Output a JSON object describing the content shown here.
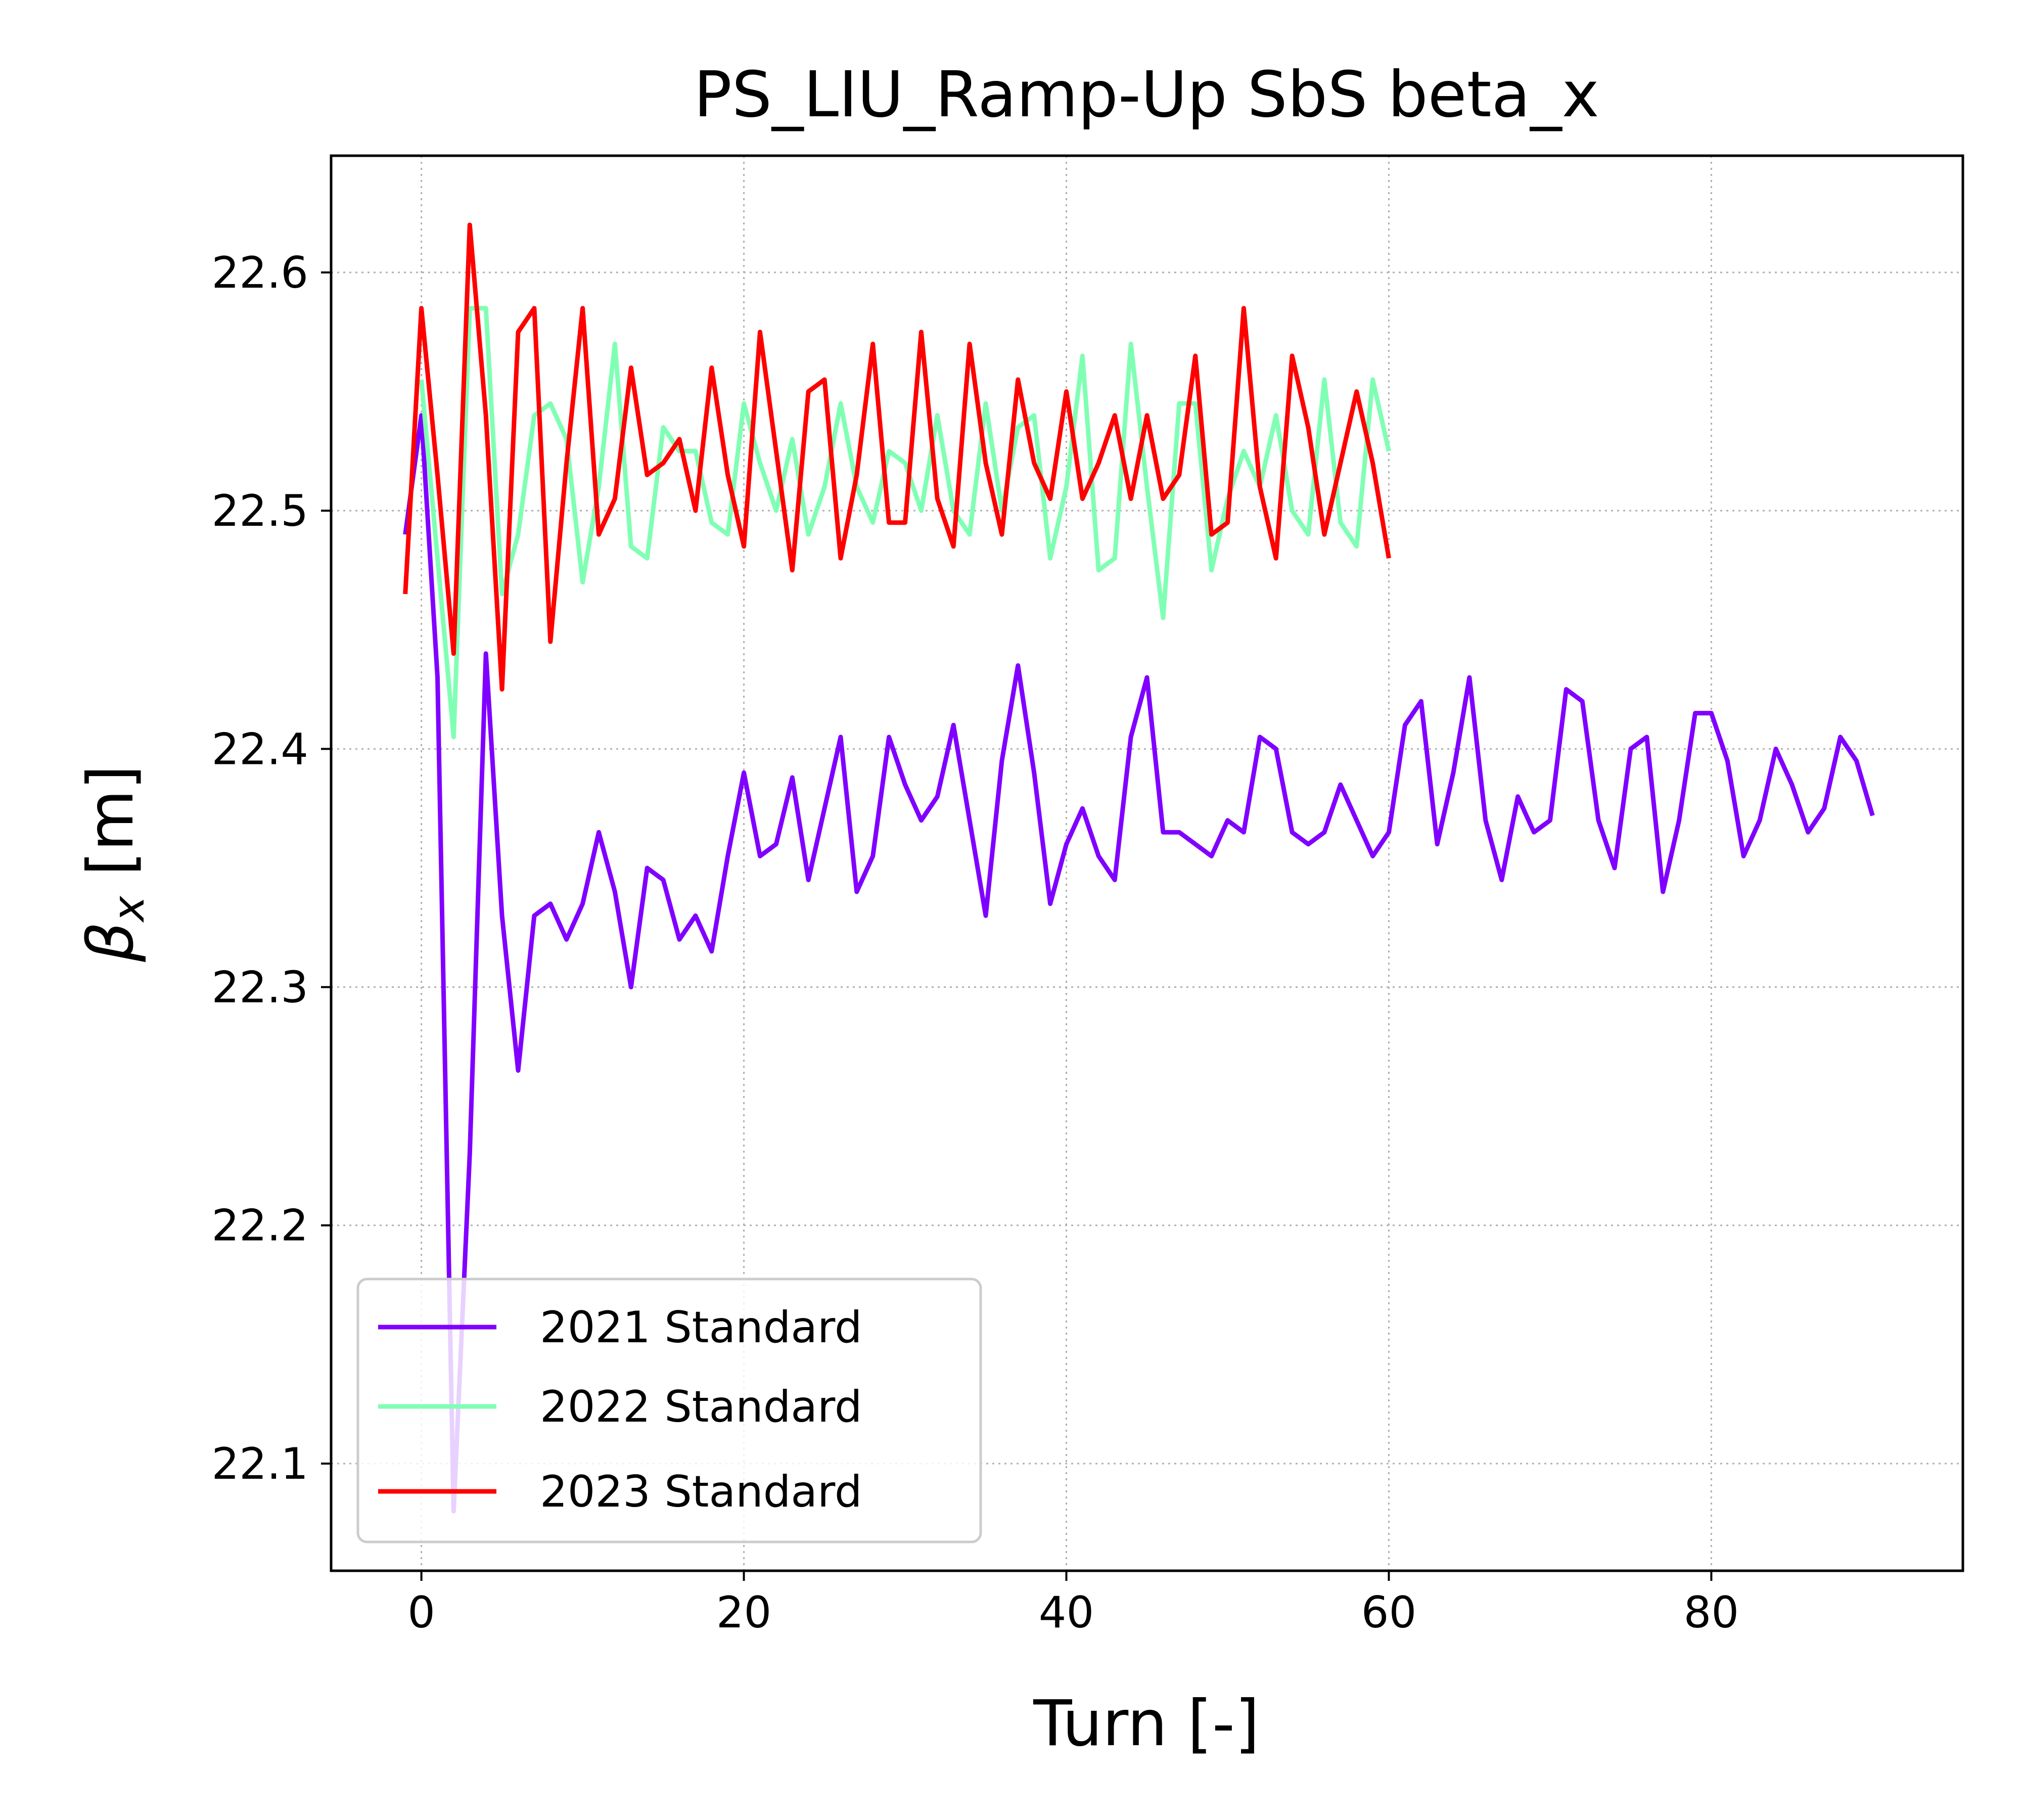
{
  "chart_data": {
    "type": "line",
    "title": "PS_LIU_Ramp-Up SbS beta_x",
    "xlabel": "Turn [-]",
    "ylabel": "β_x [m]",
    "ylabel_symbol": "β",
    "ylabel_subscript": "x",
    "ylabel_unit": " [m]",
    "xlim": [
      -5.6,
      95.6
    ],
    "ylim": [
      22.055,
      22.649
    ],
    "x_ticks": [
      0,
      20,
      40,
      60,
      80
    ],
    "y_ticks": [
      22.1,
      22.2,
      22.3,
      22.4,
      22.5,
      22.6
    ],
    "x_tick_labels": [
      "0",
      "20",
      "40",
      "60",
      "80"
    ],
    "y_tick_labels": [
      "22.1",
      "22.2",
      "22.3",
      "22.4",
      "22.5",
      "22.6"
    ],
    "grid": true,
    "legend_position": "lower-left",
    "series": [
      {
        "name": "2021 Standard",
        "color": "#8000ff",
        "x": [
          -1,
          0,
          1,
          2,
          3,
          4,
          5,
          6,
          7,
          8,
          9,
          10,
          11,
          12,
          13,
          14,
          15,
          16,
          17,
          18,
          19,
          20,
          21,
          22,
          23,
          24,
          25,
          26,
          27,
          28,
          29,
          30,
          31,
          32,
          33,
          34,
          35,
          36,
          37,
          38,
          39,
          40,
          41,
          42,
          43,
          44,
          45,
          46,
          47,
          48,
          49,
          50,
          51,
          52,
          53,
          54,
          55,
          56,
          57,
          58,
          59,
          60,
          61,
          62,
          63,
          64,
          65,
          66,
          67,
          68,
          69,
          70,
          71,
          72,
          73,
          74,
          75,
          76,
          77,
          78,
          79,
          80,
          81,
          82,
          83,
          84,
          85,
          86,
          87,
          88,
          89,
          90
        ],
        "y": [
          22.49,
          22.54,
          22.43,
          22.08,
          22.23,
          22.44,
          22.33,
          22.265,
          22.33,
          22.335,
          22.32,
          22.335,
          22.365,
          22.34,
          22.3,
          22.35,
          22.345,
          22.32,
          22.33,
          22.315,
          22.355,
          22.39,
          22.355,
          22.36,
          22.388,
          22.345,
          22.375,
          22.405,
          22.34,
          22.355,
          22.405,
          22.385,
          22.37,
          22.38,
          22.41,
          22.37,
          22.33,
          22.395,
          22.435,
          22.39,
          22.335,
          22.36,
          22.375,
          22.355,
          22.345,
          22.405,
          22.43,
          22.365,
          22.365,
          22.36,
          22.355,
          22.37,
          22.365,
          22.405,
          22.4,
          22.365,
          22.36,
          22.365,
          22.385,
          22.37,
          22.355,
          22.365,
          22.41,
          22.42,
          22.36,
          22.39,
          22.43,
          22.37,
          22.345,
          22.38,
          22.365,
          22.37,
          22.425,
          22.42,
          22.37,
          22.35,
          22.4,
          22.405,
          22.34,
          22.37,
          22.415,
          22.415,
          22.395,
          22.355,
          22.37,
          22.4,
          22.385,
          22.365,
          22.375,
          22.405,
          22.395,
          22.372
        ]
      },
      {
        "name": "2022 Standard",
        "color": "#80ffb4",
        "x": [
          0,
          1,
          2,
          3,
          4,
          5,
          6,
          7,
          8,
          9,
          10,
          11,
          12,
          13,
          14,
          15,
          16,
          17,
          18,
          19,
          20,
          21,
          22,
          23,
          24,
          25,
          26,
          27,
          28,
          29,
          30,
          31,
          32,
          33,
          34,
          35,
          36,
          37,
          38,
          39,
          40,
          41,
          42,
          43,
          44,
          45,
          46,
          47,
          48,
          49,
          50,
          51,
          52,
          53,
          54,
          55,
          56,
          57,
          58,
          59,
          60
        ],
        "y": [
          22.555,
          22.48,
          22.405,
          22.585,
          22.585,
          22.465,
          22.49,
          22.54,
          22.545,
          22.53,
          22.47,
          22.51,
          22.57,
          22.485,
          22.48,
          22.535,
          22.525,
          22.525,
          22.495,
          22.49,
          22.545,
          22.52,
          22.5,
          22.53,
          22.49,
          22.51,
          22.545,
          22.51,
          22.495,
          22.525,
          22.52,
          22.5,
          22.54,
          22.5,
          22.49,
          22.545,
          22.5,
          22.535,
          22.54,
          22.48,
          22.51,
          22.565,
          22.475,
          22.48,
          22.57,
          22.51,
          22.455,
          22.545,
          22.545,
          22.475,
          22.505,
          22.525,
          22.51,
          22.54,
          22.5,
          22.49,
          22.555,
          22.495,
          22.485,
          22.555,
          22.525
        ]
      },
      {
        "name": "2023 Standard",
        "color": "#ff0000",
        "x": [
          -1,
          0,
          1,
          2,
          3,
          4,
          5,
          6,
          7,
          8,
          9,
          10,
          11,
          12,
          13,
          14,
          15,
          16,
          17,
          18,
          19,
          20,
          21,
          22,
          23,
          24,
          25,
          26,
          27,
          28,
          29,
          30,
          31,
          32,
          33,
          34,
          35,
          36,
          37,
          38,
          39,
          40,
          41,
          42,
          43,
          44,
          45,
          46,
          47,
          48,
          49,
          50,
          51,
          52,
          53,
          54,
          55,
          56,
          57,
          58,
          59,
          60
        ],
        "y": [
          22.465,
          22.585,
          22.515,
          22.44,
          22.62,
          22.54,
          22.425,
          22.575,
          22.585,
          22.445,
          22.52,
          22.585,
          22.49,
          22.505,
          22.56,
          22.515,
          22.52,
          22.53,
          22.5,
          22.56,
          22.515,
          22.485,
          22.575,
          22.525,
          22.475,
          22.55,
          22.555,
          22.48,
          22.515,
          22.57,
          22.495,
          22.495,
          22.575,
          22.505,
          22.485,
          22.57,
          22.52,
          22.49,
          22.555,
          22.52,
          22.505,
          22.55,
          22.505,
          22.52,
          22.54,
          22.505,
          22.54,
          22.505,
          22.515,
          22.565,
          22.49,
          22.495,
          22.585,
          22.51,
          22.48,
          22.565,
          22.535,
          22.49,
          22.52,
          22.55,
          22.52,
          22.48
        ]
      }
    ]
  }
}
